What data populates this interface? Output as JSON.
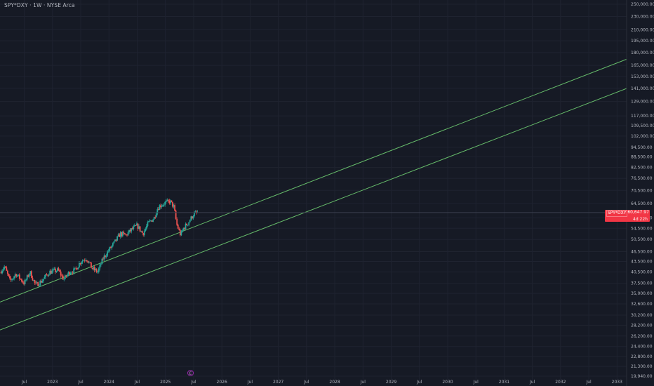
{
  "header": {
    "title": "SPY*DXY · 1W · NYSE Arca"
  },
  "price_badge": {
    "symbol": "SPY*DXY",
    "price": "60,647.97",
    "countdown": "4d 22h"
  },
  "event_marker": {
    "label": "E"
  },
  "colors": {
    "background": "#161a25",
    "grid": "#1f2330",
    "axis_text": "#b2b5be",
    "up": "#26a69a",
    "down": "#ef5350",
    "trendline": "#66bb6a",
    "price_badge": "#f23645"
  },
  "chart_data": {
    "type": "candlestick",
    "scale": "log",
    "y_ticks": [
      250000,
      230000,
      210000,
      195000,
      180000,
      165000,
      153000,
      141000,
      129000,
      117000,
      109500,
      102000,
      94500,
      88500,
      82500,
      76500,
      70500,
      64500,
      58500,
      54500,
      50500,
      46500,
      43500,
      40500,
      37500,
      35000,
      32600,
      30200,
      28200,
      26200,
      24400,
      22800,
      21300,
      19940
    ],
    "y_tick_labels": [
      "250,000.00",
      "230,000.00",
      "210,000.00",
      "195,000.00",
      "180,000.00",
      "165,000.00",
      "153,000.00",
      "141,000.00",
      "129,000.00",
      "117,000.00",
      "109,500.00",
      "102,000.00",
      "94,500.00",
      "88,500.00",
      "82,500.00",
      "76,500.00",
      "70,500.00",
      "64,500.00",
      "58,500.00",
      "54,500.00",
      "50,500.00",
      "46,500.00",
      "43,500.00",
      "40,500.00",
      "37,500.00",
      "35,000.00",
      "32,600.00",
      "30,200.00",
      "28,200.00",
      "26,200.00",
      "24,400.00",
      "22,800.00",
      "21,300.00",
      "19,940.00"
    ],
    "ylim": [
      19940,
      250000
    ],
    "x_ticks": [
      2022.5,
      2023.0,
      2023.5,
      2024.0,
      2024.5,
      2025.0,
      2025.5,
      2026.0,
      2026.5,
      2027.0,
      2027.5,
      2028.0,
      2028.5,
      2029.0,
      2029.5,
      2030.0,
      2030.5,
      2031.0,
      2031.5,
      2032.0,
      2032.5,
      2033.0
    ],
    "x_tick_labels": [
      "Jul",
      "2023",
      "Jul",
      "2024",
      "Jul",
      "2025",
      "Jul",
      "2026",
      "Jul",
      "2027",
      "Jul",
      "2028",
      "Jul",
      "2029",
      "Jul",
      "2030",
      "Jul",
      "2031",
      "Jul",
      "2032",
      "Jul",
      "2033"
    ],
    "xlim": [
      2022.07,
      2033.17
    ],
    "current_price": 60647.97,
    "anchors": [
      [
        2022.07,
        40500
      ],
      [
        2022.15,
        42000
      ],
      [
        2022.25,
        38000
      ],
      [
        2022.35,
        40000
      ],
      [
        2022.5,
        37500
      ],
      [
        2022.6,
        40500
      ],
      [
        2022.7,
        37000
      ],
      [
        2022.8,
        38000
      ],
      [
        2022.95,
        40500
      ],
      [
        2023.1,
        41000
      ],
      [
        2023.2,
        38500
      ],
      [
        2023.3,
        40500
      ],
      [
        2023.4,
        41000
      ],
      [
        2023.5,
        43500
      ],
      [
        2023.6,
        44500
      ],
      [
        2023.7,
        41500
      ],
      [
        2023.8,
        40500
      ],
      [
        2023.9,
        44500
      ],
      [
        2024.0,
        47000
      ],
      [
        2024.1,
        49500
      ],
      [
        2024.2,
        52500
      ],
      [
        2024.3,
        52000
      ],
      [
        2024.4,
        54000
      ],
      [
        2024.5,
        55500
      ],
      [
        2024.6,
        52500
      ],
      [
        2024.7,
        56500
      ],
      [
        2024.8,
        58500
      ],
      [
        2024.85,
        62000
      ],
      [
        2024.9,
        63500
      ],
      [
        2025.0,
        64800
      ],
      [
        2025.08,
        65500
      ],
      [
        2025.15,
        63000
      ],
      [
        2025.2,
        56000
      ],
      [
        2025.27,
        52000
      ],
      [
        2025.32,
        54500
      ],
      [
        2025.4,
        56500
      ],
      [
        2025.5,
        60000
      ],
      [
        2025.58,
        60648
      ]
    ],
    "trendlines": [
      {
        "x1": 2022.07,
        "y1": 33000,
        "x2": 2033.17,
        "y2": 172000
      },
      {
        "x1": 2022.07,
        "y1": 27300,
        "x2": 2033.17,
        "y2": 141000
      }
    ]
  }
}
